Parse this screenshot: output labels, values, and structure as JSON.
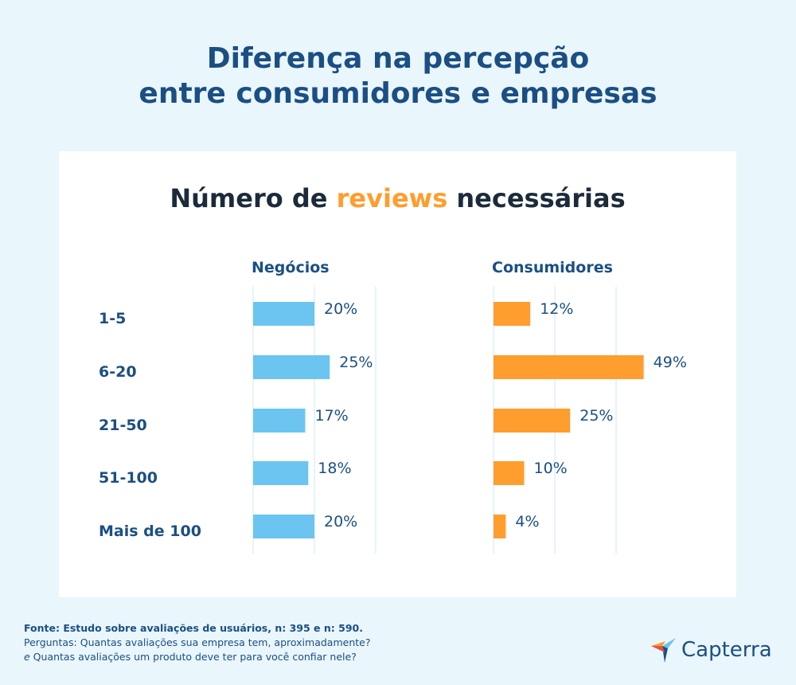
{
  "title": {
    "line1": "Diferença na percepção",
    "line2": "entre consumidores e empresas"
  },
  "subtitle": {
    "part1": "Número de ",
    "accent": "reviews",
    "part2": " necessárias"
  },
  "colors": {
    "negocios": "#6bc5f0",
    "consumidores": "#ff9d2e",
    "label": "#1b4f84",
    "grid": "#cfe7f4"
  },
  "chart_data": {
    "type": "bar",
    "orientation": "horizontal",
    "categories": [
      "1-5",
      "6-20",
      "21-50",
      "51-100",
      "Mais de 100"
    ],
    "series": [
      {
        "name": "Negócios",
        "values": [
          20,
          25,
          17,
          18,
          20
        ],
        "labels": [
          "20%",
          "25%",
          "17%",
          "18%",
          "20%"
        ]
      },
      {
        "name": "Consumidores",
        "values": [
          12,
          49,
          25,
          10,
          4
        ],
        "labels": [
          "12%",
          "49%",
          "25%",
          "10%",
          "4%"
        ]
      }
    ],
    "xlim": [
      0,
      50
    ],
    "grid": true
  },
  "footer": {
    "source": "Fonte: Estudo sobre avaliações de usuários, n: 395 e n: 590.",
    "q1": "Perguntas: Quantas avaliações sua empresa tem, aproximadamente?",
    "q2_em": "e",
    "q2_rest": " Quantas avaliações um produto deve ter para você confiar nele?"
  },
  "logo": {
    "name": "Capterra",
    "icon": "capterra-arrow-icon"
  }
}
